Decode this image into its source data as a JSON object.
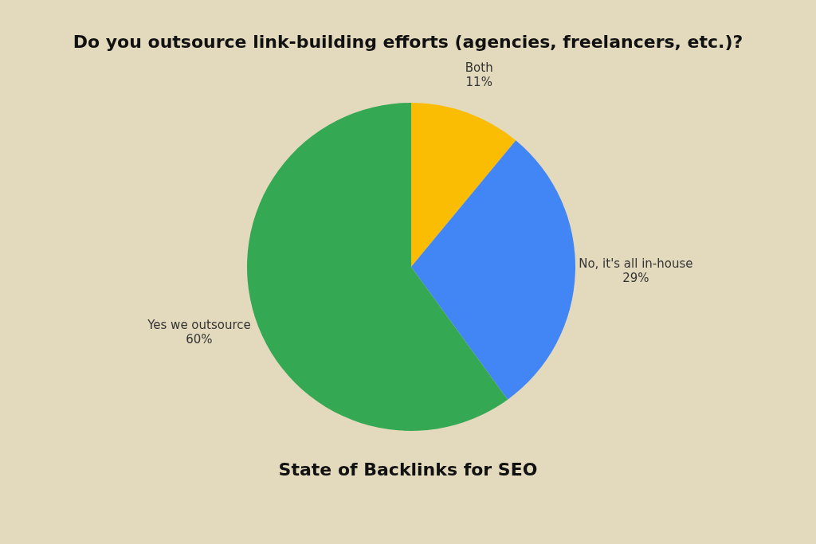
{
  "chart_data": {
    "type": "pie",
    "title": "Do you outsource link-building efforts (agencies, freelancers, etc.)?",
    "subtitle": "State of Backlinks for SEO",
    "categories": [
      "Both",
      "No, it's all in-house",
      "Yes we outsource"
    ],
    "values": [
      11,
      29,
      60
    ],
    "colors": [
      "#fbbc04",
      "#4285f4",
      "#34a853"
    ],
    "value_labels": [
      "11%",
      "29%",
      "60%"
    ]
  }
}
